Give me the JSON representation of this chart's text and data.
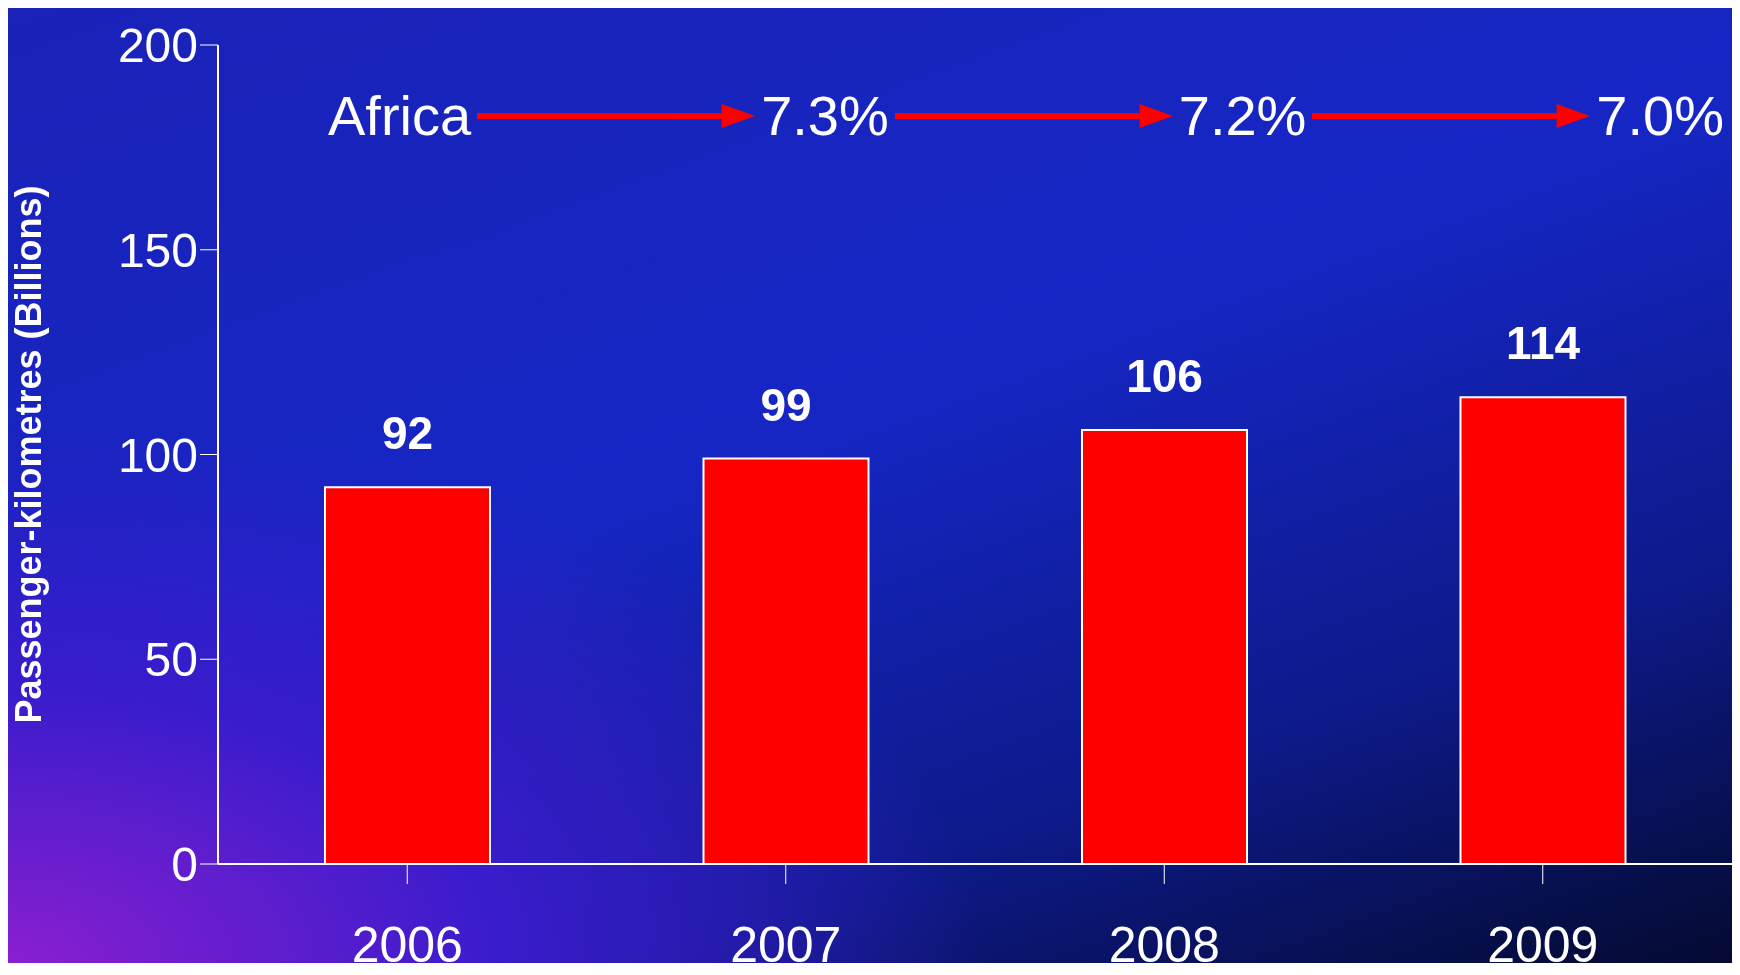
{
  "chart_data": {
    "type": "bar",
    "ylabel": "Passenger-kilometres (Billions)",
    "categories": [
      "2006",
      "2007",
      "2008",
      "2009"
    ],
    "values": [
      92,
      99,
      106,
      114
    ],
    "color": "#ff0000",
    "ylim": [
      0,
      200
    ],
    "yticks": [
      0,
      50,
      100,
      150,
      200
    ],
    "grid": false,
    "legend": false,
    "data_labels": true,
    "annotations": [
      "Africa",
      "7.3%",
      "7.2%",
      "7.0%"
    ]
  }
}
